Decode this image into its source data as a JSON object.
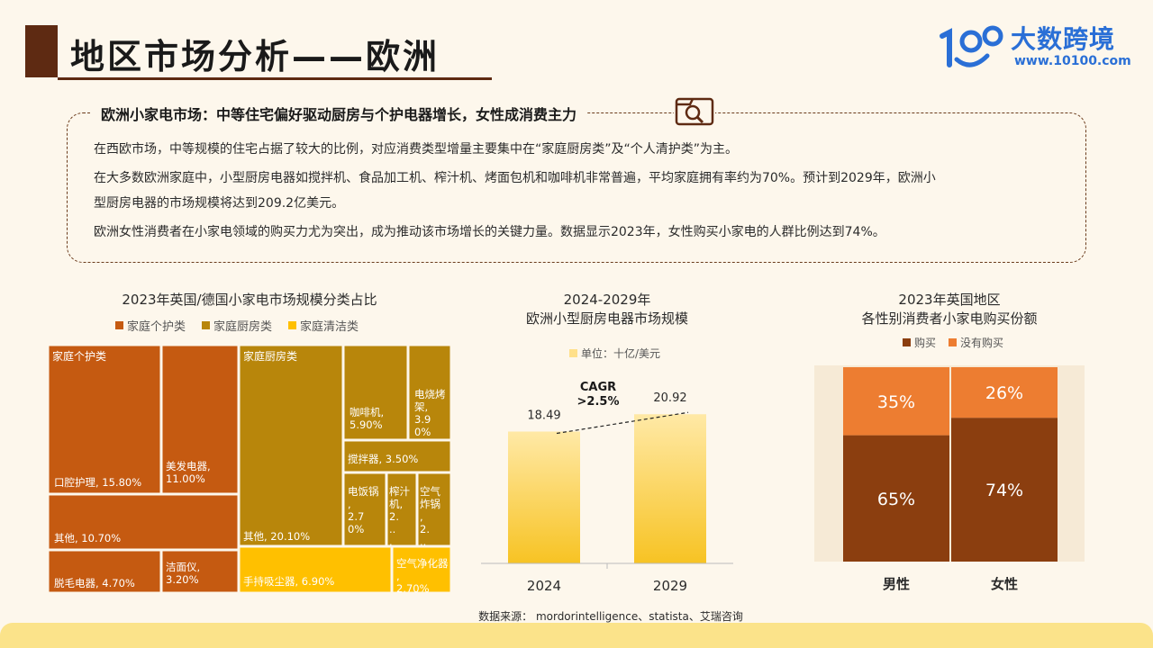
{
  "page": {
    "title": "地区市场分析——欧洲",
    "logo_text": "大数跨境",
    "logo_url": "www.10100.com",
    "summary_heading": "欧洲小家电市场：中等住宅偏好驱动厨房与个护电器增长，女性成消费主力",
    "paragraphs": [
      "在西欧市场，中等规模的住宅占据了较大的比例，对应消费类型增量主要集中在“家庭厨房类”及“个人清护类”为主。",
      "在大多数欧洲家庭中，小型厨房电器如搅拌机、食品加工机、榨汁机、烤面包机和咖啡机非常普遍，平均家庭拥有率约为70%。预计到2029年，欧洲小",
      "型厨房电器的市场规模将达到209.2亿美元。",
      "欧洲女性消费者在小家电领域的购买力尤为突出，成为推动该市场增长的关键力量。数据显示2023年，女性购买小家电的人群比例达到74%。"
    ],
    "source": "数据来源： mordorintelligence、statista、艾瑞咨询",
    "colors": {
      "brown": "#5e2a12",
      "blue": "#2a6fd6",
      "yellow_band": "#fbe38a"
    }
  },
  "chart_data": [
    {
      "type": "treemap",
      "title": "2023年英国/德国小家电市场规模分类占比",
      "legend": [
        {
          "name": "家庭个护类",
          "color": "#c55a11"
        },
        {
          "name": "家庭厨房类",
          "color": "#b8860b"
        },
        {
          "name": "家庭清洁类",
          "color": "#ffc000"
        }
      ],
      "groups": [
        {
          "name": "家庭个护类",
          "label": "家庭个护类",
          "items": [
            {
              "name": "口腔护理",
              "value": 15.8,
              "label": "口腔护理, 15.80%"
            },
            {
              "name": "美发电器",
              "value": 11.0,
              "label": "美发电器, 11.00%"
            },
            {
              "name": "其他",
              "value": 10.7,
              "label": "其他, 10.70%"
            },
            {
              "name": "脱毛电器",
              "value": 4.7,
              "label": "脱毛电器, 4.70%"
            },
            {
              "name": "洁面仪",
              "value": 3.2,
              "label": "洁面仪, 3.20%"
            }
          ]
        },
        {
          "name": "家庭厨房类",
          "label": "家庭厨房类",
          "items": [
            {
              "name": "其他",
              "value": 20.1,
              "label": "其他, 20.10%"
            },
            {
              "name": "咖啡机",
              "value": 5.9,
              "label": "咖啡机, 5.90%"
            },
            {
              "name": "电烧烤架",
              "value": 3.9,
              "label": "电烧烤架, 3.90%"
            },
            {
              "name": "搅拌器",
              "value": 3.5,
              "label": "搅拌器, 3.50%"
            },
            {
              "name": "电饭锅",
              "value": 2.7,
              "label": "电饭锅, 2.70%"
            },
            {
              "name": "榨汁机",
              "value": null,
              "label": "榨汁机, 2...."
            },
            {
              "name": "空气炸锅",
              "value": null,
              "label": "空气炸锅, 2...."
            }
          ]
        },
        {
          "name": "家庭清洁类",
          "items": [
            {
              "name": "手持吸尘器",
              "value": 6.9,
              "label": "手持吸尘器, 6.90%"
            },
            {
              "name": "空气净化器",
              "value": 2.7,
              "label": "空气净化器, 2.70%"
            }
          ]
        }
      ]
    },
    {
      "type": "bar",
      "title": "2024-2029年\n欧洲小型厨房电器市场规模",
      "unit_legend": "单位：十亿/美元",
      "categories": [
        "2024",
        "2029"
      ],
      "values": [
        18.49,
        20.92
      ],
      "annotation": "CAGR >2.5%",
      "ylim": [
        0,
        26
      ],
      "color": "#ffc000"
    },
    {
      "type": "stacked_bar_100",
      "title": "2023年英国地区\n各性别消费者小家电购买份额",
      "categories": [
        "男性",
        "女性"
      ],
      "series": [
        {
          "name": "购买",
          "values": [
            65,
            74
          ],
          "color": "#8b3e0f"
        },
        {
          "name": "没有购买",
          "values": [
            35,
            26
          ],
          "color": "#ed7d31"
        }
      ]
    }
  ]
}
